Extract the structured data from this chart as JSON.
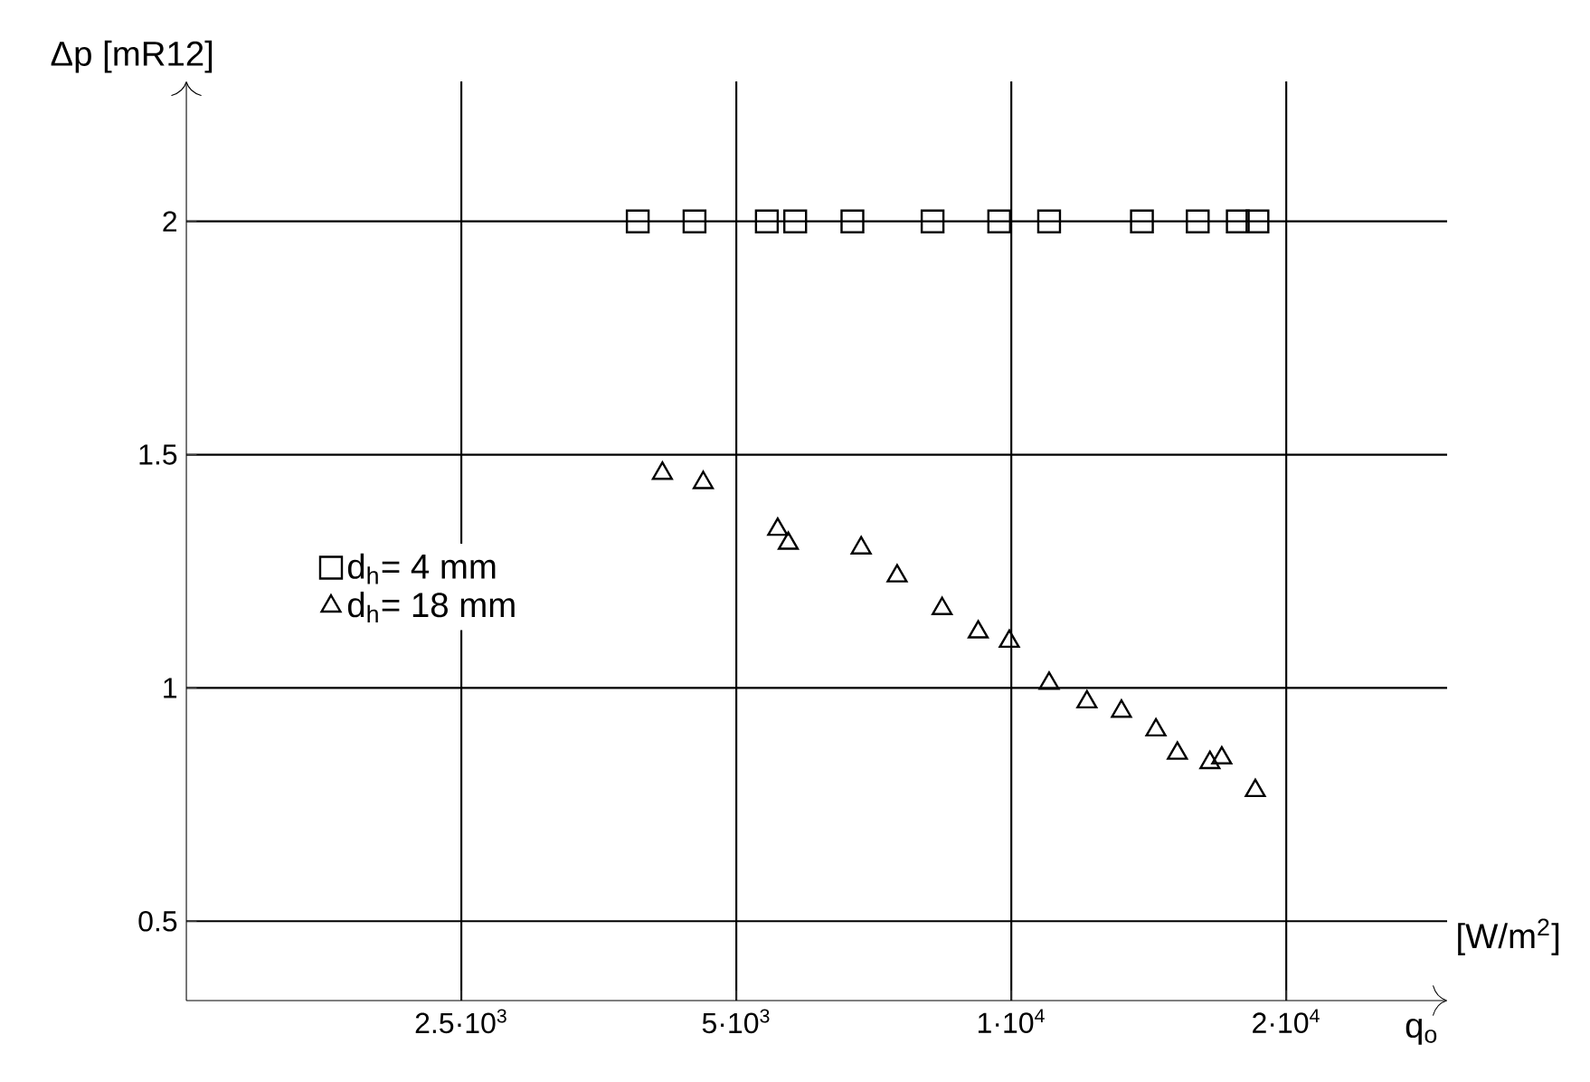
{
  "chart_data": {
    "type": "scatter",
    "xlabel": "q$_{o}$",
    "ylabel": "Δp [mR12]",
    "annotations": [
      "[W/m$^{2}$]"
    ],
    "log": "x",
    "grid": true,
    "legend": "left",
    "xlim": [
      1250,
      30000
    ],
    "ylim": [
      0.33,
      2.3
    ],
    "xticks": [
      {
        "value": 2500,
        "label": "2.5·10$^{3}$"
      },
      {
        "value": 5000,
        "label": "5·10$^{3}$"
      },
      {
        "value": 10000,
        "label": "1·10$^{4}$"
      },
      {
        "value": 20000,
        "label": "2·10$^{4}$"
      }
    ],
    "yticks": [
      0.5,
      1,
      1.5,
      2
    ],
    "series": [
      {
        "name": "d$_{h}$= 4 mm",
        "color": "#000000",
        "marker": "square",
        "x": [
          3900,
          4500,
          5400,
          5800,
          6700,
          8200,
          9700,
          11000,
          13900,
          16000,
          17700,
          18600
        ],
        "values": [
          2,
          2,
          2,
          2,
          2,
          2,
          2,
          2,
          2,
          2,
          2,
          2
        ]
      },
      {
        "name": "d$_{h}$= 18 mm",
        "color": "#000000",
        "marker": "triangle",
        "x": [
          4150,
          4600,
          5550,
          5700,
          6850,
          7500,
          8400,
          9200,
          9950,
          11000,
          12100,
          13200,
          14400,
          15200,
          16500,
          17000,
          18500
        ],
        "values": [
          1.46,
          1.44,
          1.34,
          1.31,
          1.3,
          1.24,
          1.17,
          1.12,
          1.1,
          1.01,
          0.97,
          0.95,
          0.91,
          0.86,
          0.84,
          0.85,
          0.78
        ]
      }
    ]
  }
}
